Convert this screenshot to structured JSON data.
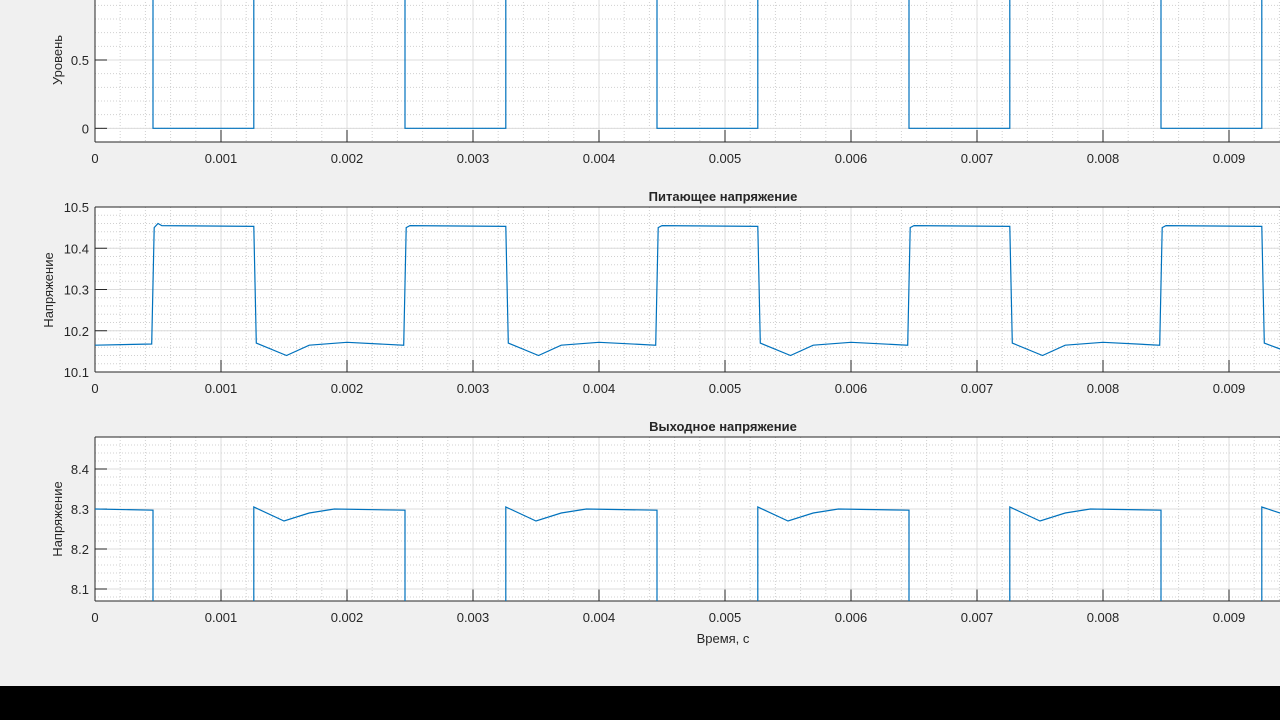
{
  "chart_data": [
    {
      "type": "line",
      "title": "",
      "xlabel": "",
      "ylabel": "Уровень",
      "xlim": [
        0,
        0.01
      ],
      "ylim": [
        -0.1,
        1.1
      ],
      "grid": "on",
      "xticks": [
        "0",
        "0.001",
        "0.002",
        "0.003",
        "0.004",
        "0.005",
        "0.006",
        "0.007",
        "0.008",
        "0.009"
      ],
      "yticks": [
        "0",
        "0.5"
      ],
      "ytick_values": [
        0,
        0.5
      ],
      "color": "#0072bd",
      "points": [
        [
          0,
          1
        ],
        [
          0.00046,
          1
        ],
        [
          0.00046,
          0
        ],
        [
          0.00126,
          0
        ],
        [
          0.00126,
          1
        ],
        [
          0.00246,
          1
        ],
        [
          0.00246,
          0
        ],
        [
          0.00326,
          0
        ],
        [
          0.00326,
          1
        ],
        [
          0.00446,
          1
        ],
        [
          0.00446,
          0
        ],
        [
          0.00526,
          0
        ],
        [
          0.00526,
          1
        ],
        [
          0.00646,
          1
        ],
        [
          0.00646,
          0
        ],
        [
          0.00726,
          0
        ],
        [
          0.00726,
          1
        ],
        [
          0.00846,
          1
        ],
        [
          0.00846,
          0
        ],
        [
          0.00926,
          0
        ],
        [
          0.00926,
          1
        ],
        [
          0.0095,
          1
        ]
      ]
    },
    {
      "type": "line",
      "title": "Питающее напряжение",
      "xlabel": "",
      "ylabel": "Напряжение",
      "xlim": [
        0,
        0.01
      ],
      "ylim": [
        10.1,
        10.5
      ],
      "grid": "on",
      "xticks": [
        "0",
        "0.001",
        "0.002",
        "0.003",
        "0.004",
        "0.005",
        "0.006",
        "0.007",
        "0.008",
        "0.009"
      ],
      "yticks": [
        "10.1",
        "10.2",
        "10.3",
        "10.4",
        "10.5"
      ],
      "ytick_values": [
        10.1,
        10.2,
        10.3,
        10.4,
        10.5
      ],
      "color": "#0072bd",
      "points": [
        [
          0,
          10.165
        ],
        [
          0.00045,
          10.168
        ],
        [
          0.00047,
          10.45
        ],
        [
          0.0005,
          10.46
        ],
        [
          0.00053,
          10.455
        ],
        [
          0.00126,
          10.453
        ],
        [
          0.00128,
          10.17
        ],
        [
          0.00152,
          10.14
        ],
        [
          0.0017,
          10.165
        ],
        [
          0.002,
          10.172
        ],
        [
          0.00245,
          10.165
        ],
        [
          0.00247,
          10.45
        ],
        [
          0.0025,
          10.455
        ],
        [
          0.00326,
          10.453
        ],
        [
          0.00328,
          10.17
        ],
        [
          0.00352,
          10.14
        ],
        [
          0.0037,
          10.165
        ],
        [
          0.004,
          10.172
        ],
        [
          0.00445,
          10.165
        ],
        [
          0.00447,
          10.45
        ],
        [
          0.0045,
          10.455
        ],
        [
          0.00526,
          10.453
        ],
        [
          0.00528,
          10.17
        ],
        [
          0.00552,
          10.14
        ],
        [
          0.0057,
          10.165
        ],
        [
          0.006,
          10.172
        ],
        [
          0.00645,
          10.165
        ],
        [
          0.00647,
          10.45
        ],
        [
          0.0065,
          10.455
        ],
        [
          0.00726,
          10.453
        ],
        [
          0.00728,
          10.17
        ],
        [
          0.00752,
          10.14
        ],
        [
          0.0077,
          10.165
        ],
        [
          0.008,
          10.172
        ],
        [
          0.00845,
          10.165
        ],
        [
          0.00847,
          10.45
        ],
        [
          0.0085,
          10.455
        ],
        [
          0.00926,
          10.453
        ],
        [
          0.00928,
          10.17
        ],
        [
          0.0095,
          10.145
        ]
      ]
    },
    {
      "type": "line",
      "title": "Выходное напряжение",
      "xlabel": "Время, с",
      "ylabel": "Напряжение",
      "xlim": [
        0,
        0.01
      ],
      "ylim": [
        8.07,
        8.48
      ],
      "grid": "on",
      "xticks": [
        "0",
        "0.001",
        "0.002",
        "0.003",
        "0.004",
        "0.005",
        "0.006",
        "0.007",
        "0.008",
        "0.009"
      ],
      "yticks": [
        "8.1",
        "8.2",
        "8.3",
        "8.4"
      ],
      "ytick_values": [
        8.1,
        8.2,
        8.3,
        8.4
      ],
      "color": "#0072bd",
      "points": [
        [
          0,
          8.3
        ],
        [
          0.00046,
          8.297
        ],
        [
          0.00046,
          7.9
        ],
        [
          0.00126,
          7.9
        ],
        [
          0.00126,
          8.305
        ],
        [
          0.0015,
          8.27
        ],
        [
          0.0017,
          8.29
        ],
        [
          0.0019,
          8.3
        ],
        [
          0.00246,
          8.297
        ],
        [
          0.00246,
          7.9
        ],
        [
          0.00326,
          7.9
        ],
        [
          0.00326,
          8.305
        ],
        [
          0.0035,
          8.27
        ],
        [
          0.0037,
          8.29
        ],
        [
          0.0039,
          8.3
        ],
        [
          0.00446,
          8.297
        ],
        [
          0.00446,
          7.9
        ],
        [
          0.00526,
          7.9
        ],
        [
          0.00526,
          8.305
        ],
        [
          0.0055,
          8.27
        ],
        [
          0.0057,
          8.29
        ],
        [
          0.0059,
          8.3
        ],
        [
          0.00646,
          8.297
        ],
        [
          0.00646,
          7.9
        ],
        [
          0.00726,
          7.9
        ],
        [
          0.00726,
          8.305
        ],
        [
          0.0075,
          8.27
        ],
        [
          0.0077,
          8.29
        ],
        [
          0.0079,
          8.3
        ],
        [
          0.00846,
          8.297
        ],
        [
          0.00846,
          7.9
        ],
        [
          0.00926,
          7.9
        ],
        [
          0.00926,
          8.305
        ],
        [
          0.0095,
          8.28
        ]
      ]
    }
  ]
}
